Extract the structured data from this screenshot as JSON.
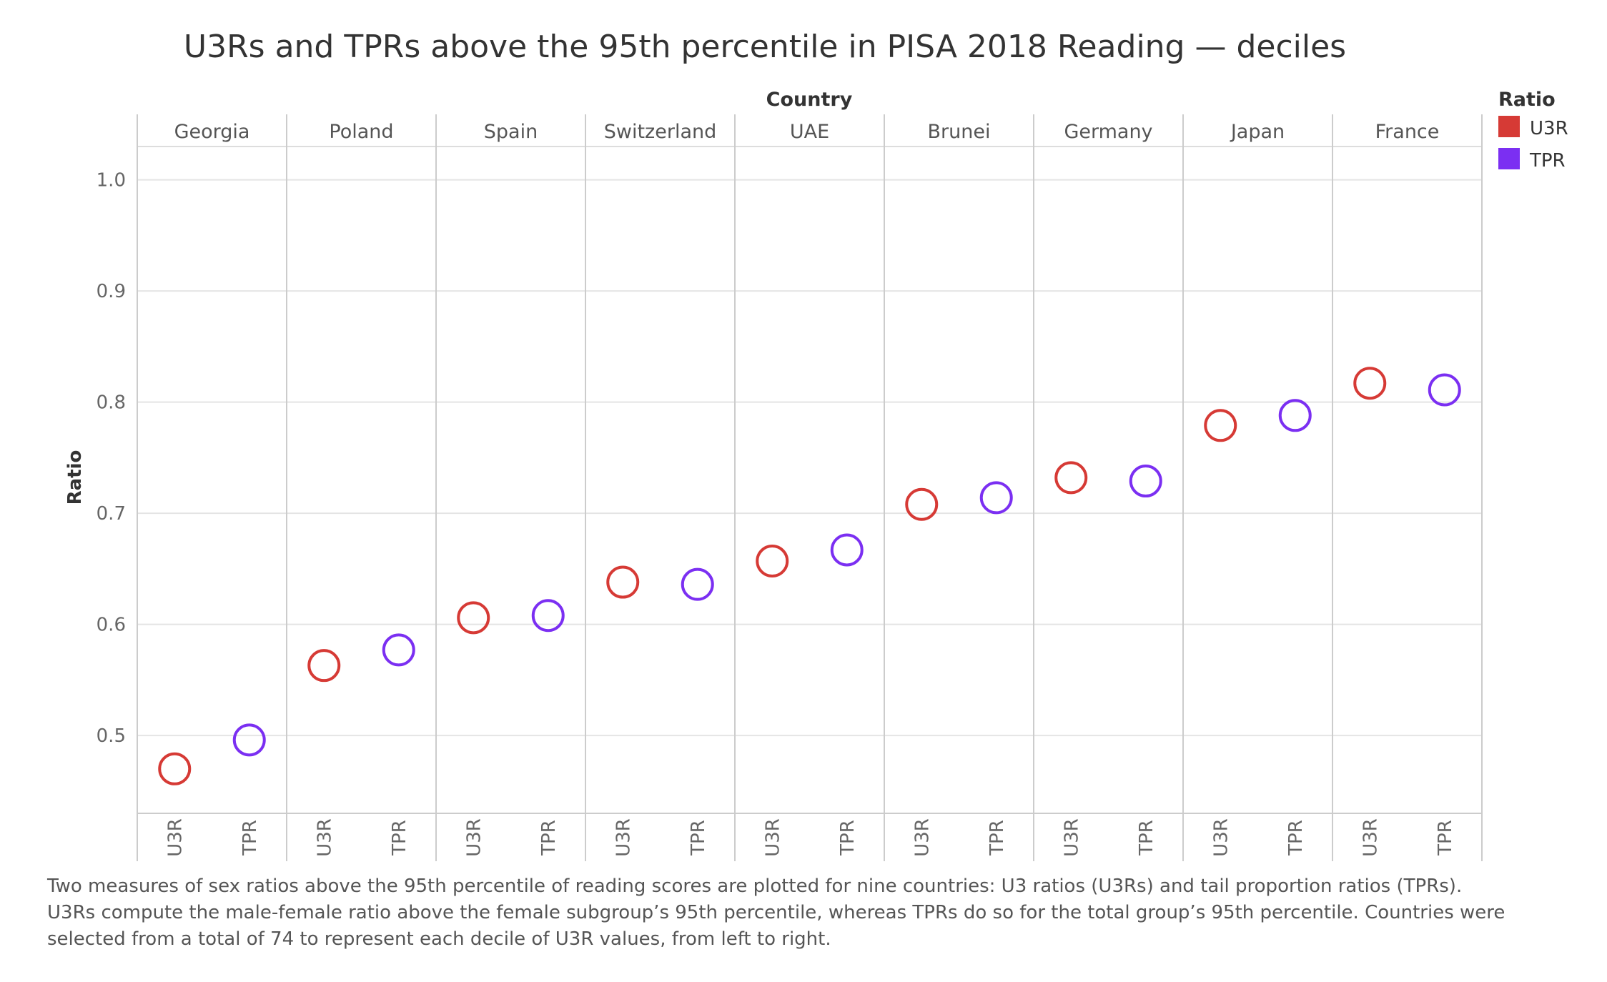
{
  "chart_data": {
    "type": "scatter",
    "title": "U3Rs and TPRs above the 95th percentile in PISA 2018 Reading — deciles",
    "column_header": "Country",
    "ylabel": "Ratio",
    "ylim": [
      0.43,
      1.03
    ],
    "yticks": [
      "0.5",
      "0.6",
      "0.7",
      "0.8",
      "0.9",
      "1.0"
    ],
    "grid": true,
    "legend": {
      "title": "Ratio",
      "placement": "top-right",
      "items": [
        {
          "name": "U3R",
          "color": "#d63a35"
        },
        {
          "name": "TPR",
          "color": "#7b2ff2"
        }
      ]
    },
    "sub_categories": [
      "U3R",
      "TPR"
    ],
    "countries": [
      "Georgia",
      "Poland",
      "Spain",
      "Switzerland",
      "UAE",
      "Brunei",
      "Germany",
      "Japan",
      "France"
    ],
    "series": [
      {
        "name": "U3R",
        "color": "#d63a35",
        "values": [
          0.47,
          0.563,
          0.606,
          0.638,
          0.657,
          0.708,
          0.732,
          0.779,
          0.817
        ]
      },
      {
        "name": "TPR",
        "color": "#7b2ff2",
        "values": [
          0.496,
          0.577,
          0.608,
          0.636,
          0.667,
          0.714,
          0.729,
          0.788,
          0.811
        ]
      }
    ]
  },
  "caption": {
    "line1": "Two measures of sex ratios above the 95th percentile of reading scores are plotted for nine countries: U3 ratios (U3Rs) and tail proportion ratios (TPRs).",
    "line2": "U3Rs compute the male-female ratio above the female subgroup’s 95th percentile, whereas TPRs do so for the total group’s 95th percentile. Countries were",
    "line3": "selected from a total of 74 to represent each decile of U3R values, from left to right."
  }
}
